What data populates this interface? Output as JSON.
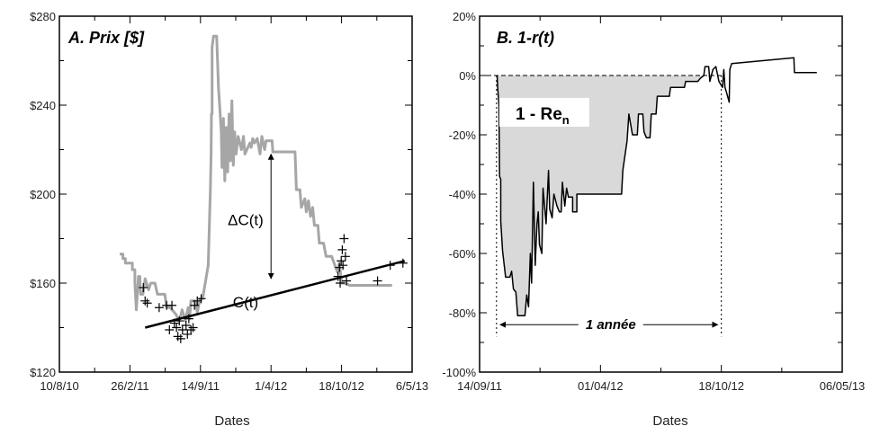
{
  "chart_data": [
    {
      "type": "line",
      "panel_label": "A. Prix [$]",
      "xlabel": "Dates",
      "ylabel": "",
      "ylim": [
        120,
        280
      ],
      "xlim": [
        "2010-08-10",
        "2013-05-06"
      ],
      "y_ticks": [
        120,
        160,
        200,
        240,
        280
      ],
      "y_tick_labels": [
        "$120",
        "$160",
        "$200",
        "$240",
        "$280"
      ],
      "x_ticks": [
        "2010-08-10",
        "2011-02-26",
        "2011-09-14",
        "2012-04-01",
        "2012-10-18",
        "2013-05-06"
      ],
      "x_tick_labels": [
        "10/8/10",
        "26/2/11",
        "14/9/11",
        "1/4/12",
        "18/10/12",
        "6/5/13"
      ],
      "grid": false,
      "series": [
        {
          "name": "",
          "kind": "price",
          "color": "#a6a6a6",
          "points": [
            [
              "2011-01-28",
              173
            ],
            [
              "2011-02-06",
              173
            ],
            [
              "2011-02-06",
              171
            ],
            [
              "2011-02-13",
              171
            ],
            [
              "2011-02-13",
              169
            ],
            [
              "2011-03-05",
              169
            ],
            [
              "2011-03-05",
              166
            ],
            [
              "2011-03-12",
              166
            ],
            [
              "2011-03-12",
              160
            ],
            [
              "2011-03-16",
              148
            ],
            [
              "2011-03-22",
              163
            ],
            [
              "2011-03-26",
              163
            ],
            [
              "2011-03-28",
              155
            ],
            [
              "2011-04-04",
              155
            ],
            [
              "2011-04-10",
              162
            ],
            [
              "2011-04-20",
              157
            ],
            [
              "2011-04-26",
              160
            ],
            [
              "2011-05-08",
              160
            ],
            [
              "2011-05-15",
              155
            ],
            [
              "2011-06-05",
              155
            ],
            [
              "2011-06-10",
              149
            ],
            [
              "2011-06-20",
              149
            ],
            [
              "2011-07-06",
              146
            ],
            [
              "2011-07-16",
              143
            ],
            [
              "2011-07-24",
              148
            ],
            [
              "2011-08-02",
              143
            ],
            [
              "2011-08-10",
              149
            ],
            [
              "2011-08-14",
              144
            ],
            [
              "2011-08-18",
              152
            ],
            [
              "2011-08-30",
              152
            ],
            [
              "2011-09-05",
              147
            ],
            [
              "2011-09-13",
              153
            ],
            [
              "2011-09-20",
              153
            ],
            [
              "2011-10-06",
              168
            ],
            [
              "2011-10-12",
              202
            ],
            [
              "2011-10-14",
              218
            ],
            [
              "2011-10-15",
              236
            ],
            [
              "2011-10-17",
              236
            ],
            [
              "2011-10-17",
              266
            ],
            [
              "2011-10-21",
              271
            ],
            [
              "2011-10-30",
              271
            ],
            [
              "2011-11-04",
              248
            ],
            [
              "2011-11-08",
              238
            ],
            [
              "2011-11-12",
              228
            ],
            [
              "2011-11-14",
              212
            ],
            [
              "2011-11-18",
              234
            ],
            [
              "2011-11-22",
              206
            ],
            [
              "2011-11-26",
              230
            ],
            [
              "2011-11-30",
              210
            ],
            [
              "2011-12-04",
              236
            ],
            [
              "2011-12-08",
              215
            ],
            [
              "2011-12-12",
              242
            ],
            [
              "2011-12-16",
              213
            ],
            [
              "2011-12-20",
              228
            ],
            [
              "2011-12-24",
              218
            ],
            [
              "2011-12-30",
              226
            ],
            [
              "2012-01-08",
              220
            ],
            [
              "2012-01-14",
              226
            ],
            [
              "2012-01-18",
              218
            ],
            [
              "2012-02-01",
              223
            ],
            [
              "2012-02-05",
              221
            ],
            [
              "2012-02-09",
              225
            ],
            [
              "2012-02-14",
              223
            ],
            [
              "2012-02-22",
              225
            ],
            [
              "2012-03-01",
              218
            ],
            [
              "2012-03-06",
              226
            ],
            [
              "2012-03-14",
              220
            ],
            [
              "2012-03-18",
              224
            ],
            [
              "2012-04-04",
              224
            ],
            [
              "2012-04-06",
              219
            ],
            [
              "2012-06-08",
              219
            ],
            [
              "2012-06-12",
              202
            ],
            [
              "2012-06-22",
              202
            ],
            [
              "2012-06-26",
              194
            ],
            [
              "2012-07-06",
              198
            ],
            [
              "2012-07-10",
              192
            ],
            [
              "2012-07-16",
              197
            ],
            [
              "2012-07-22",
              190
            ],
            [
              "2012-07-28",
              194
            ],
            [
              "2012-08-02",
              186
            ],
            [
              "2012-08-12",
              186
            ],
            [
              "2012-08-16",
              178
            ],
            [
              "2012-08-28",
              178
            ],
            [
              "2012-09-04",
              172
            ],
            [
              "2012-09-20",
              172
            ],
            [
              "2012-10-06",
              165
            ],
            [
              "2012-10-12",
              169
            ],
            [
              "2012-10-18",
              160
            ],
            [
              "2012-10-28",
              160
            ],
            [
              "2012-11-10",
              159
            ],
            [
              "2013-03-10",
              159
            ]
          ]
        },
        {
          "name": "",
          "kind": "trend",
          "color": "#000000",
          "points": [
            [
              "2011-04-10",
              140
            ],
            [
              "2013-04-15",
              170
            ]
          ]
        }
      ],
      "markers": [
        [
          "2011-04-05",
          158
        ],
        [
          "2011-04-10",
          152
        ],
        [
          "2011-04-16",
          151
        ],
        [
          "2011-05-20",
          149
        ],
        [
          "2011-06-10",
          150
        ],
        [
          "2011-06-18",
          139
        ],
        [
          "2011-06-25",
          150
        ],
        [
          "2011-07-02",
          142
        ],
        [
          "2011-07-08",
          140
        ],
        [
          "2011-07-12",
          136
        ],
        [
          "2011-07-16",
          143
        ],
        [
          "2011-07-20",
          135
        ],
        [
          "2011-07-25",
          139
        ],
        [
          "2011-08-04",
          141
        ],
        [
          "2011-08-08",
          137
        ],
        [
          "2011-08-12",
          144
        ],
        [
          "2011-08-18",
          139
        ],
        [
          "2011-08-24",
          140
        ],
        [
          "2011-08-28",
          150
        ],
        [
          "2011-09-05",
          152
        ],
        [
          "2011-09-16",
          153
        ],
        [
          "2012-10-08",
          163
        ],
        [
          "2012-10-12",
          167
        ],
        [
          "2012-10-14",
          160
        ],
        [
          "2012-10-17",
          170
        ],
        [
          "2012-10-20",
          175
        ],
        [
          "2012-10-22",
          168
        ],
        [
          "2012-10-25",
          180
        ],
        [
          "2012-10-29",
          172
        ],
        [
          "2012-11-01",
          161
        ],
        [
          "2013-01-28",
          161
        ],
        [
          "2013-03-05",
          168
        ],
        [
          "2013-04-10",
          169
        ]
      ],
      "annotations": [
        {
          "text": "ΔC(t)",
          "x": "2012-01-20",
          "y": 186
        },
        {
          "text": "C(t)",
          "x": "2012-01-20",
          "y": 149
        }
      ],
      "delta_arrow": {
        "x": "2012-04-01",
        "y_top": 218,
        "y_bottom": 162
      }
    },
    {
      "type": "area",
      "panel_label": "B. 1-r(t)",
      "xlabel": "Dates",
      "ylabel": "",
      "ylim": [
        -100,
        20
      ],
      "xlim": [
        "2011-09-14",
        "2013-05-06"
      ],
      "y_ticks": [
        -100,
        -80,
        -60,
        -40,
        -20,
        0,
        20
      ],
      "y_tick_labels": [
        "-100%",
        "-80%",
        "-60%",
        "-40%",
        "-20%",
        "0%",
        "20%"
      ],
      "x_ticks": [
        "2011-09-14",
        "2012-04-01",
        "2012-10-18",
        "2013-05-06"
      ],
      "x_tick_labels": [
        "14/09/11",
        "01/04/12",
        "18/10/12",
        "06/05/13"
      ],
      "grid": false,
      "fill_color": "#d9d9d9",
      "series": [
        {
          "name": "",
          "kind": "drawdown",
          "color": "#000000",
          "points": [
            [
              "2011-10-13",
              0
            ],
            [
              "2011-10-14",
              -4
            ],
            [
              "2011-10-16",
              -10
            ],
            [
              "2011-10-17",
              -34
            ],
            [
              "2011-10-19",
              -35
            ],
            [
              "2011-10-19",
              -49
            ],
            [
              "2011-10-22",
              -59
            ],
            [
              "2011-10-27",
              -68
            ],
            [
              "2011-11-03",
              -68
            ],
            [
              "2011-11-06",
              -66
            ],
            [
              "2011-11-09",
              -72
            ],
            [
              "2011-11-13",
              -73
            ],
            [
              "2011-11-16",
              -81
            ],
            [
              "2011-11-28",
              -81
            ],
            [
              "2011-12-01",
              -74
            ],
            [
              "2011-12-04",
              -78
            ],
            [
              "2011-12-07",
              -60
            ],
            [
              "2011-12-09",
              -70
            ],
            [
              "2011-12-12",
              -36
            ],
            [
              "2011-12-15",
              -64
            ],
            [
              "2011-12-18",
              -50
            ],
            [
              "2011-12-20",
              -46
            ],
            [
              "2011-12-22",
              -57
            ],
            [
              "2011-12-26",
              -60
            ],
            [
              "2011-12-28",
              -38
            ],
            [
              "2012-01-02",
              -50
            ],
            [
              "2012-01-06",
              -32
            ],
            [
              "2012-01-08",
              -45
            ],
            [
              "2012-01-12",
              -48
            ],
            [
              "2012-01-15",
              -40
            ],
            [
              "2012-01-20",
              -44
            ],
            [
              "2012-01-24",
              -46
            ],
            [
              "2012-01-27",
              -46
            ],
            [
              "2012-01-29",
              -36
            ],
            [
              "2012-02-02",
              -44
            ],
            [
              "2012-02-05",
              -38
            ],
            [
              "2012-02-08",
              -41
            ],
            [
              "2012-02-15",
              -41
            ],
            [
              "2012-02-15",
              -46
            ],
            [
              "2012-02-22",
              -46
            ],
            [
              "2012-02-22",
              -40
            ],
            [
              "2012-05-06",
              -40
            ],
            [
              "2012-05-08",
              -32
            ],
            [
              "2012-05-15",
              -22
            ],
            [
              "2012-05-18",
              -13
            ],
            [
              "2012-05-24",
              -20
            ],
            [
              "2012-06-01",
              -20
            ],
            [
              "2012-06-03",
              -13
            ],
            [
              "2012-06-10",
              -13
            ],
            [
              "2012-06-12",
              -19
            ],
            [
              "2012-06-16",
              -21
            ],
            [
              "2012-06-22",
              -21
            ],
            [
              "2012-06-24",
              -13
            ],
            [
              "2012-07-02",
              -13
            ],
            [
              "2012-07-04",
              -7
            ],
            [
              "2012-07-24",
              -7
            ],
            [
              "2012-07-26",
              -4
            ],
            [
              "2012-08-18",
              -4
            ],
            [
              "2012-08-20",
              -2
            ],
            [
              "2012-09-09",
              -2
            ],
            [
              "2012-09-13",
              -1
            ],
            [
              "2012-09-19",
              0
            ],
            [
              "2012-09-21",
              3
            ],
            [
              "2012-09-27",
              3
            ],
            [
              "2012-09-29",
              -2
            ],
            [
              "2012-10-04",
              2
            ],
            [
              "2012-10-09",
              3
            ],
            [
              "2012-10-14",
              -2
            ],
            [
              "2012-10-20",
              -4
            ],
            [
              "2012-10-22",
              2
            ],
            [
              "2012-10-24",
              -4
            ],
            [
              "2012-10-27",
              -6
            ],
            [
              "2012-10-31",
              -9
            ],
            [
              "2012-11-01",
              2
            ],
            [
              "2012-11-04",
              4
            ],
            [
              "2013-02-15",
              6
            ],
            [
              "2013-02-16",
              1
            ],
            [
              "2013-03-25",
              1
            ]
          ]
        }
      ],
      "reference_line_y": 0,
      "period_start": "2011-10-12",
      "period_end": "2012-10-18",
      "annotations": [
        {
          "text": "1 - Re",
          "subscript": "n",
          "x": "2012-01-02",
          "y": -13
        },
        {
          "text": "1 année",
          "x": "2012-04-18",
          "y": -84
        }
      ]
    }
  ]
}
